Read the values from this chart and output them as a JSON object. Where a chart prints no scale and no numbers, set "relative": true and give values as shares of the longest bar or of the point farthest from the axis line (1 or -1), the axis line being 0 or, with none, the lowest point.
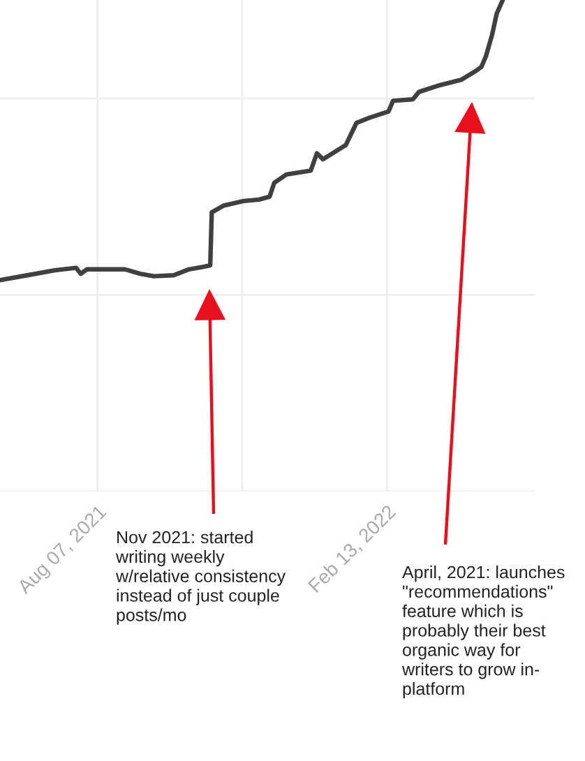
{
  "chart_data": {
    "type": "line",
    "relative": true,
    "grid": true,
    "marker": "none",
    "line_style": "solid",
    "x": [
      "2021-06-04",
      "2021-06-22",
      "2021-07-10",
      "2021-07-24",
      "2021-07-27",
      "2021-07-31",
      "2021-08-25",
      "2021-09-04",
      "2021-09-13",
      "2021-09-26",
      "2021-10-06",
      "2021-10-15",
      "2021-10-20",
      "2021-10-21",
      "2021-10-29",
      "2021-11-11",
      "2021-11-21",
      "2021-11-28",
      "2021-12-01",
      "2021-12-09",
      "2021-12-25",
      "2021-12-29",
      "2022-01-02",
      "2022-01-17",
      "2022-01-24",
      "2022-02-02",
      "2022-02-14",
      "2022-02-17",
      "2022-03-02",
      "2022-03-06",
      "2022-03-20",
      "2022-04-03",
      "2022-04-12",
      "2022-04-16",
      "2022-04-19",
      "2022-04-23",
      "2022-04-26",
      "2022-04-30"
    ],
    "series": [
      {
        "color": "#404040",
        "values": [
          0.43,
          0.44,
          0.45,
          0.455,
          0.443,
          0.452,
          0.452,
          0.443,
          0.438,
          0.44,
          0.452,
          0.457,
          0.46,
          0.568,
          0.582,
          0.591,
          0.594,
          0.6,
          0.628,
          0.645,
          0.653,
          0.688,
          0.676,
          0.705,
          0.75,
          0.761,
          0.773,
          0.795,
          0.798,
          0.813,
          0.827,
          0.838,
          0.855,
          0.864,
          0.886,
          0.929,
          0.972,
          1
        ]
      }
    ],
    "xlim": [
      "2021-06-04",
      "2022-05-21"
    ],
    "xticks": [
      {
        "value": "2021-08-07",
        "label": "Aug 07, 2021"
      },
      {
        "value": "2021-11-10",
        "label": null
      },
      {
        "value": "2022-02-13",
        "label": "Feb 13, 2022"
      }
    ],
    "annotations": [
      "Nov 2021: started\nwriting weekly\nw/relative consistency\ninstead of just couple\nposts/mo",
      "April, 2021: launches\n\"recommendations\"\nfeature which is\nprobably their best\norganic way for\nwriters to grow in-\nplatform"
    ]
  }
}
